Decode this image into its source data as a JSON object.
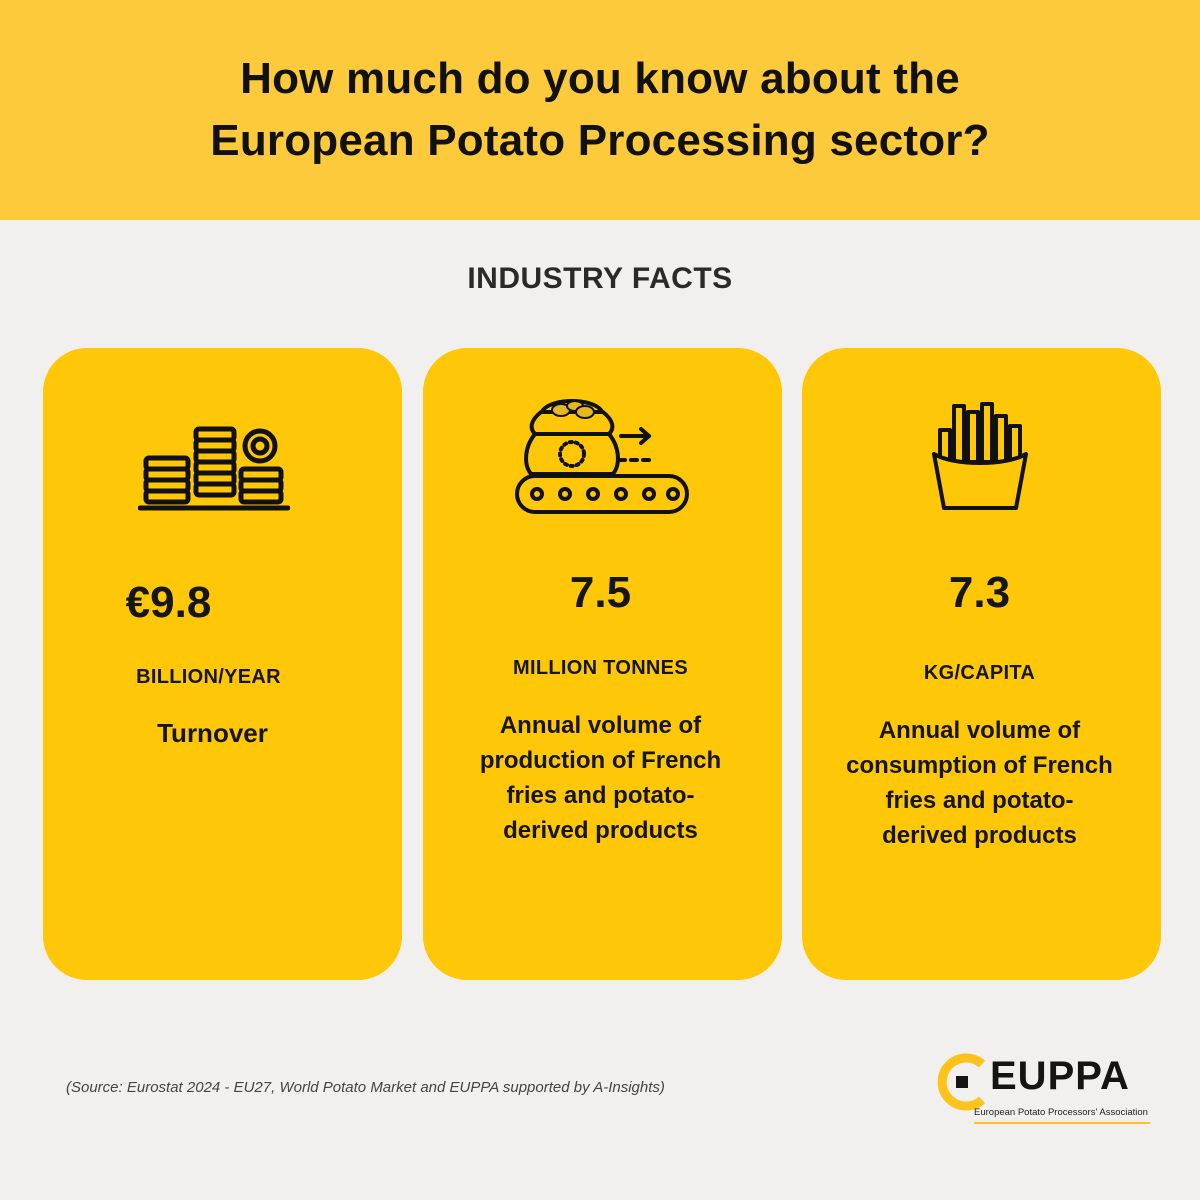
{
  "header": {
    "title_line1": "How much do you know about the",
    "title_line2": "European Potato Processing sector?"
  },
  "section": {
    "title": "INDUSTRY FACTS"
  },
  "cards": [
    {
      "icon": "coin-stacks-icon",
      "value": "€9.8",
      "unit": "BILLION/YEAR",
      "description": [
        "Turnover"
      ]
    },
    {
      "icon": "potato-sack-conveyor-icon",
      "value": "7.5",
      "unit": "MILLION TONNES",
      "description": [
        "Annual volume of",
        "production of French",
        "fries and potato-",
        "derived products"
      ]
    },
    {
      "icon": "french-fries-icon",
      "value": "7.3",
      "unit": "KG/CAPITA",
      "description": [
        "Annual volume of",
        "consumption of French",
        "fries and potato-",
        "derived products"
      ]
    }
  ],
  "footer": {
    "source": "(Source: Eurostat 2024 - EU27, World Potato Market and EUPPA supported by A-Insights)",
    "logo_word": "EUPPA",
    "logo_subtitle": "European Potato Processors' Association"
  },
  "colors": {
    "banner": "#fdca3c",
    "card": "#fec708",
    "background": "#f1f0ee",
    "text": "#141414"
  }
}
